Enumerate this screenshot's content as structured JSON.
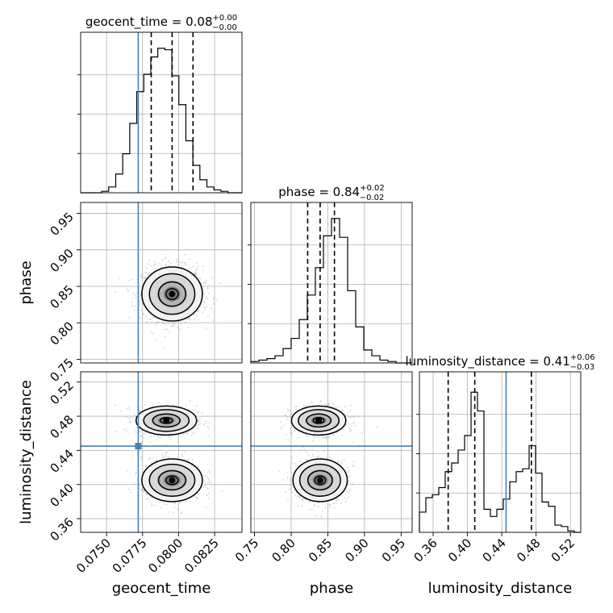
{
  "chart_data": {
    "type": "corner",
    "truth_color": "#4682b4",
    "parameters": [
      {
        "name": "geocent_time",
        "xlabel": "geocent_time",
        "title_name": "geocent_time",
        "title_value": "0.08",
        "title_plus": "+0.00",
        "title_minus": "−0.00",
        "range": [
          0.0732,
          0.0844
        ],
        "ticks": [
          0.075,
          0.0775,
          0.08,
          0.0825
        ],
        "tick_labels": [
          "0.0750",
          "0.0775",
          "0.0800",
          "0.0825"
        ],
        "truth": 0.0772,
        "quantiles": [
          0.0781,
          0.07955,
          0.081
        ],
        "hist_bins": [
          0.0732,
          0.0844
        ],
        "hist": [
          0,
          0,
          0,
          0.01,
          0.04,
          0.13,
          0.27,
          0.48,
          0.7,
          0.82,
          0.94,
          1.0,
          0.99,
          0.81,
          0.61,
          0.36,
          0.19,
          0.09,
          0.04,
          0.02,
          0.01,
          0,
          0
        ]
      },
      {
        "name": "phase",
        "xlabel": "phase",
        "ylabel": "phase",
        "title_name": "phase",
        "title_value": "0.84",
        "title_plus": "+0.02",
        "title_minus": "−0.02",
        "range": [
          0.745,
          0.965
        ],
        "ticks": [
          0.75,
          0.8,
          0.85,
          0.9,
          0.95
        ],
        "tick_labels": [
          "0.75",
          "0.80",
          "0.85",
          "0.90",
          "0.95"
        ],
        "truth": null,
        "quantiles": [
          0.8225,
          0.8395,
          0.859
        ],
        "hist": [
          0.01,
          0.02,
          0.03,
          0.05,
          0.1,
          0.17,
          0.3,
          0.47,
          0.66,
          0.88,
          1.0,
          0.87,
          0.5,
          0.25,
          0.09,
          0.05,
          0.02,
          0.01,
          0,
          0
        ]
      },
      {
        "name": "luminosity_distance",
        "xlabel": "luminosity_distance",
        "ylabel": "luminosity_distance",
        "title_name": "luminosity_distance",
        "title_value": "0.41",
        "title_plus": "+0.06",
        "title_minus": "−0.03",
        "range": [
          0.344,
          0.532
        ],
        "ticks": [
          0.36,
          0.4,
          0.44,
          0.48,
          0.52
        ],
        "tick_labels": [
          "0.36",
          "0.40",
          "0.44",
          "0.48",
          "0.52"
        ],
        "truth": 0.445,
        "quantiles": [
          0.3775,
          0.4085,
          0.4745
        ],
        "hist": [
          0.14,
          0.24,
          0.26,
          0.31,
          0.42,
          0.48,
          0.57,
          0.67,
          0.97,
          0.84,
          0.16,
          0.11,
          0.16,
          0.23,
          0.35,
          0.42,
          0.44,
          0.6,
          0.41,
          0.21,
          0.18,
          0.05,
          0.04,
          0.01,
          0
        ]
      }
    ],
    "joint_modes": {
      "phase_vs_geocent_time": {
        "center": [
          0.07955,
          0.8395
        ],
        "spread": [
          0.00105,
          0.0185
        ]
      },
      "distance_modes": [
        {
          "center": 0.475,
          "spread": 0.0085
        },
        {
          "center": 0.405,
          "spread": 0.0125
        }
      ]
    }
  }
}
